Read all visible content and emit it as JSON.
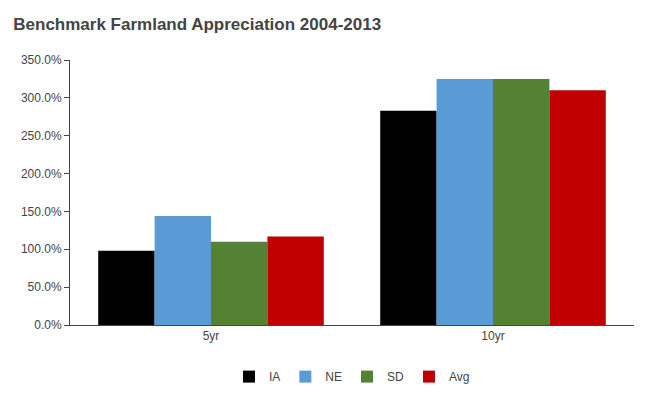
{
  "chart_data": {
    "type": "bar",
    "title": "Benchmark Farmland Appreciation 2004-2013",
    "categories": [
      "5yr",
      "10yr"
    ],
    "series": [
      {
        "name": "IA",
        "color": "#000000",
        "values": [
          0.98,
          2.83
        ]
      },
      {
        "name": "NE",
        "color": "#5b9bd5",
        "values": [
          1.44,
          3.25
        ]
      },
      {
        "name": "SD",
        "color": "#548235",
        "values": [
          1.1,
          3.25
        ]
      },
      {
        "name": "Avg",
        "color": "#c00000",
        "values": [
          1.17,
          3.1
        ]
      }
    ],
    "ylim": [
      0,
      3.5
    ],
    "yticks": [
      {
        "value": 0.0,
        "label": "0.0%"
      },
      {
        "value": 0.5,
        "label": "50.0%"
      },
      {
        "value": 1.0,
        "label": "100.0%"
      },
      {
        "value": 1.5,
        "label": "150.0%"
      },
      {
        "value": 2.0,
        "label": "200.0%"
      },
      {
        "value": 2.5,
        "label": "250.0%"
      },
      {
        "value": 3.0,
        "label": "300.0%"
      },
      {
        "value": 3.5,
        "label": "350.0%"
      }
    ],
    "grid": false,
    "legend": "bottom"
  }
}
